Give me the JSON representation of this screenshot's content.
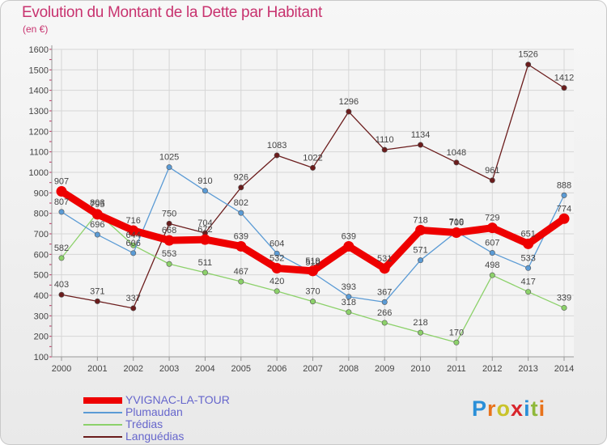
{
  "title": "Evolution du Montant de la Dette par Habitant",
  "subtitle": "(en €)",
  "logo": {
    "letters": [
      "P",
      "r",
      "o",
      "x",
      "i",
      "t",
      "i"
    ],
    "colors": [
      "#2a8fd8",
      "#e8731c",
      "#c9c32a",
      "#d8252c",
      "#2a8fd8",
      "#8fb83a",
      "#e8731c"
    ]
  },
  "chart_data": {
    "type": "line",
    "x": [
      "2000",
      "2001",
      "2002",
      "2003",
      "2004",
      "2005",
      "2006",
      "2007",
      "2008",
      "2009",
      "2010",
      "2011",
      "2012",
      "2013",
      "2014"
    ],
    "yticks": [
      "100",
      "200",
      "300",
      "400",
      "500",
      "600",
      "700",
      "800",
      "900",
      "1000",
      "1100",
      "1200",
      "1300",
      "1400",
      "1500",
      "1600"
    ],
    "ylim": [
      100,
      1600
    ],
    "grid": true,
    "series": [
      {
        "name": "YVIGNAC-LA-TOUR",
        "color": "#ee0000",
        "values": [
          907,
          795,
          716,
          668,
          672,
          639,
          532,
          519,
          639,
          531,
          718,
          706,
          729,
          651,
          774
        ],
        "labels": [
          "907",
          "795",
          "716",
          "668",
          "672",
          "639",
          "532",
          "519",
          "639",
          "531",
          "718",
          "706",
          "729",
          "651",
          "774"
        ]
      },
      {
        "name": "Plumaudan",
        "color": "#5b9bd5",
        "values": [
          807,
          696,
          606,
          1025,
          910,
          802,
          604,
          510,
          393,
          367,
          571,
          710,
          607,
          533,
          888
        ],
        "labels": [
          "807",
          "696",
          "606",
          "1025",
          "910",
          "802",
          "604",
          "510",
          "393",
          "367",
          "571",
          "710",
          "607",
          "533",
          "888"
        ]
      },
      {
        "name": "Trédias",
        "color": "#8cd16a",
        "values": [
          582,
          803,
          644,
          553,
          511,
          467,
          420,
          370,
          318,
          266,
          218,
          170,
          498,
          417,
          339
        ],
        "labels": [
          "582",
          "803",
          "644",
          "553",
          "511",
          "467",
          "420",
          "370",
          "318",
          "266",
          "218",
          "170",
          "498",
          "417",
          "339"
        ]
      },
      {
        "name": "Languédias",
        "color": "#6b1c1c",
        "values": [
          403,
          371,
          337,
          750,
          704,
          926,
          1083,
          1022,
          1296,
          1110,
          1134,
          1048,
          961,
          1526,
          1412
        ],
        "labels": [
          "403",
          "371",
          "337",
          "750",
          "704",
          "926",
          "1083",
          "1022",
          "1296",
          "1110",
          "1134",
          "1048",
          "961",
          "1526",
          "1412"
        ]
      }
    ]
  }
}
